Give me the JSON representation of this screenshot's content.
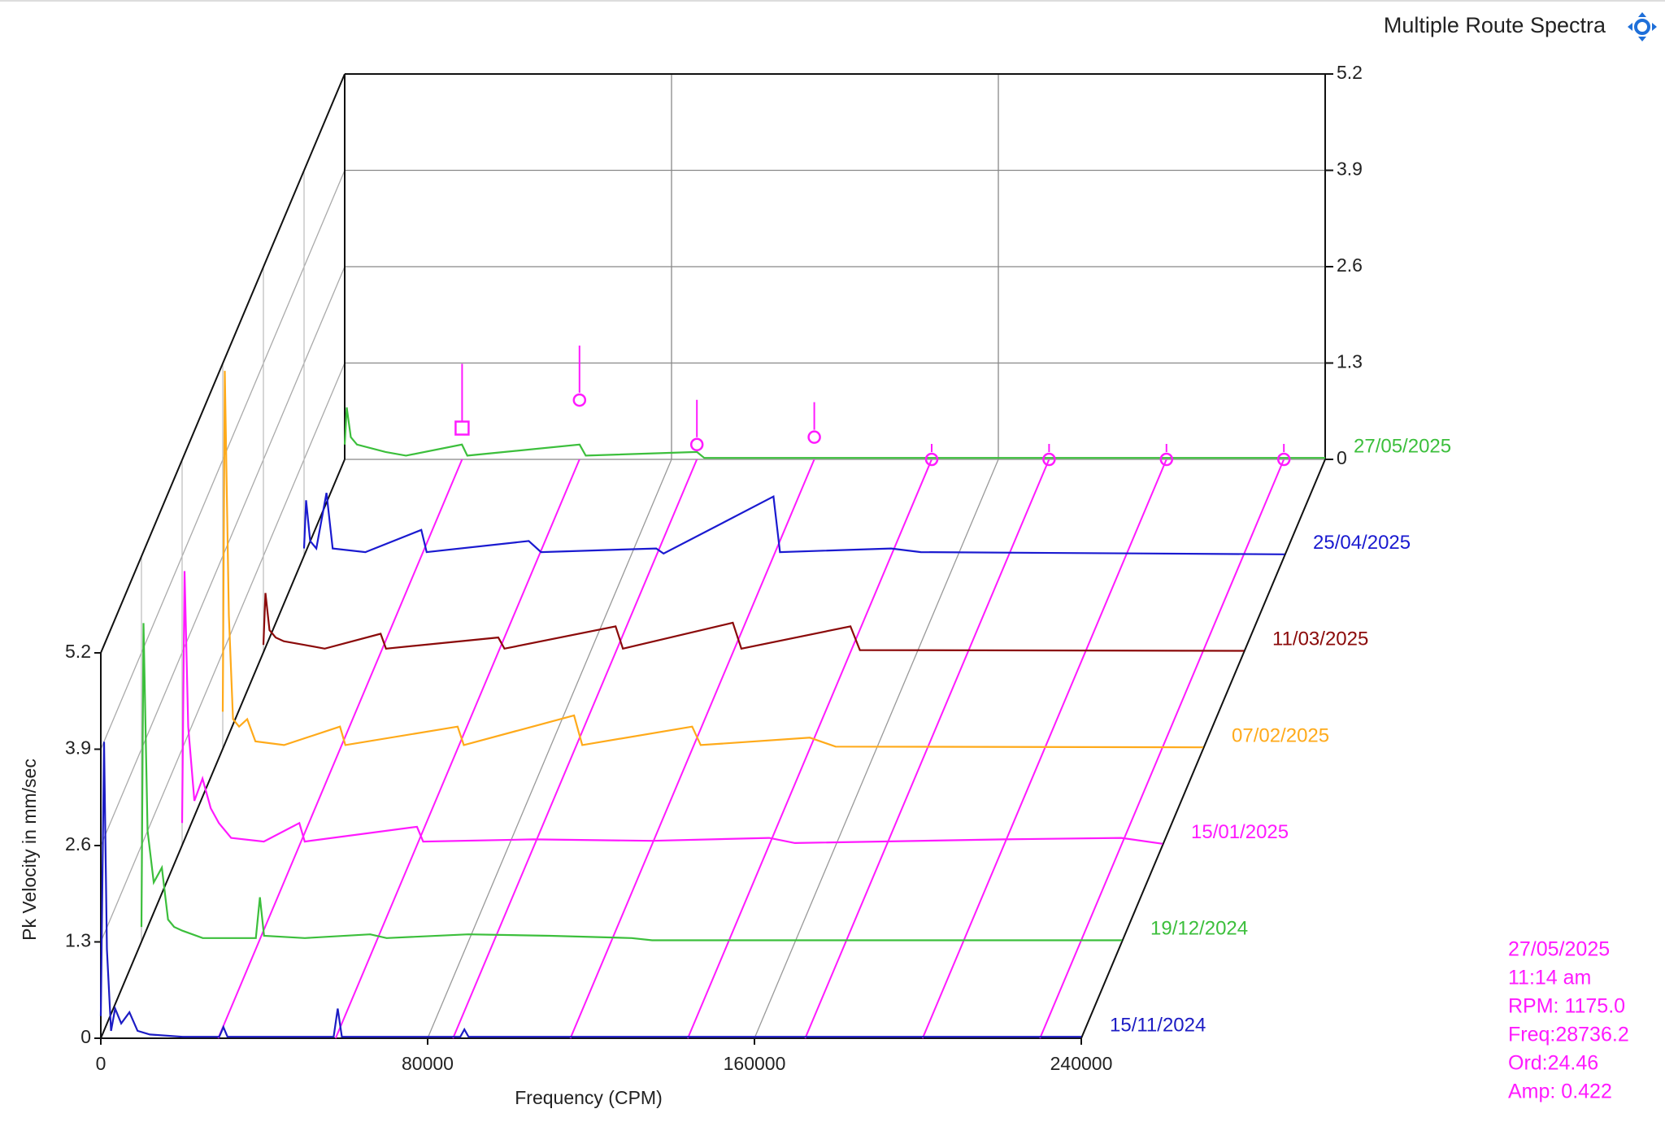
{
  "chart_data": {
    "type": "waterfall",
    "title": "Multiple Route Spectra",
    "xlabel": "Frequency (CPM)",
    "ylabel": "Pk Velocity in mm/sec",
    "xlim": [
      0,
      240000
    ],
    "xticks": [
      0,
      80000,
      160000,
      240000
    ],
    "ylim": [
      0,
      5.2
    ],
    "yticks": [
      0,
      1.3,
      2.6,
      3.9,
      5.2
    ],
    "grid": true,
    "series": [
      {
        "name": "15/11/2024",
        "color": "#1c1cc4",
        "x": [
          0,
          800,
          1500,
          2500,
          3500,
          5000,
          7000,
          9000,
          12000,
          20000,
          29000,
          30000,
          31000,
          57000,
          58000,
          59000,
          88000,
          89000,
          90000,
          240000
        ],
        "values": [
          0.3,
          4.0,
          1.2,
          0.1,
          0.4,
          0.2,
          0.35,
          0.1,
          0.05,
          0.02,
          0.02,
          0.15,
          0.02,
          0.02,
          0.4,
          0.02,
          0.02,
          0.12,
          0.02,
          0.02
        ]
      },
      {
        "name": "19/12/2024",
        "color": "#3cbf3c",
        "x": [
          0,
          500,
          1500,
          3000,
          5000,
          6500,
          8000,
          10000,
          15000,
          28000,
          29000,
          30000,
          40000,
          56000,
          60000,
          80000,
          100000,
          120000,
          125000,
          240000
        ],
        "values": [
          0.2,
          4.3,
          1.5,
          0.8,
          1.0,
          0.3,
          0.2,
          0.15,
          0.05,
          0.05,
          0.6,
          0.08,
          0.05,
          0.1,
          0.05,
          0.1,
          0.08,
          0.05,
          0.02,
          0.02
        ]
      },
      {
        "name": "15/01/2025",
        "color": "#ff1aff",
        "x": [
          0,
          600,
          1500,
          3000,
          5000,
          7000,
          9000,
          12000,
          20000,
          28700,
          30000,
          57500,
          59000,
          86000,
          115000,
          143700,
          150000,
          201000,
          229900,
          240000
        ],
        "values": [
          0.3,
          3.7,
          1.6,
          0.6,
          0.9,
          0.5,
          0.3,
          0.1,
          0.05,
          0.3,
          0.05,
          0.25,
          0.05,
          0.08,
          0.06,
          0.1,
          0.03,
          0.08,
          0.1,
          0.02
        ]
      },
      {
        "name": "07/02/2025",
        "color": "#ffaa1a",
        "x": [
          0,
          500,
          1500,
          2500,
          4000,
          6000,
          8000,
          15000,
          28700,
          30000,
          57500,
          59000,
          86000,
          88000,
          114900,
          117000,
          143700,
          150000,
          240000
        ],
        "values": [
          0.5,
          5.1,
          1.8,
          0.4,
          0.3,
          0.4,
          0.1,
          0.05,
          0.3,
          0.05,
          0.3,
          0.05,
          0.45,
          0.05,
          0.3,
          0.05,
          0.15,
          0.03,
          0.02
        ]
      },
      {
        "name": "11/03/2025",
        "color": "#8b0a0a",
        "x": [
          0,
          500,
          1500,
          3000,
          5000,
          10000,
          15000,
          28700,
          30000,
          57500,
          59000,
          86200,
          88000,
          114900,
          117000,
          143700,
          146000,
          240000
        ],
        "values": [
          0.1,
          0.8,
          0.3,
          0.2,
          0.15,
          0.1,
          0.05,
          0.25,
          0.05,
          0.2,
          0.05,
          0.35,
          0.05,
          0.4,
          0.05,
          0.35,
          0.03,
          0.02
        ]
      },
      {
        "name": "25/04/2025",
        "color": "#1a1ad0",
        "x": [
          0,
          500,
          1500,
          3000,
          5500,
          7000,
          15000,
          28700,
          30000,
          55000,
          58000,
          86200,
          88000,
          114900,
          116500,
          143700,
          151000,
          240000
        ],
        "values": [
          0.1,
          0.75,
          0.2,
          0.1,
          0.85,
          0.1,
          0.05,
          0.35,
          0.05,
          0.2,
          0.05,
          0.1,
          0.03,
          0.8,
          0.05,
          0.1,
          0.05,
          0.02
        ]
      },
      {
        "name": "27/05/2025",
        "color": "#3cbf3c",
        "x": [
          0,
          500,
          1500,
          3000,
          10000,
          15000,
          28700,
          30000,
          57500,
          59000,
          86200,
          88000,
          240000
        ],
        "values": [
          0.2,
          0.7,
          0.3,
          0.2,
          0.1,
          0.05,
          0.2,
          0.05,
          0.2,
          0.05,
          0.1,
          0.02,
          0.02
        ]
      }
    ],
    "cursor": {
      "color": "#ff1aff",
      "info": [
        "27/05/2025",
        "11:14 am",
        "RPM: 1175.0",
        "Freq:28736.2",
        "Ord:24.46",
        "Amp: 0.422"
      ],
      "harmonics": [
        28736.2,
        57472.4,
        86208.6,
        114944.8,
        143681,
        172417.2,
        201153.4,
        229889.6
      ],
      "amplitudes": [
        0.422,
        0.8,
        0.2,
        0.3,
        0,
        0,
        0,
        0
      ]
    }
  }
}
